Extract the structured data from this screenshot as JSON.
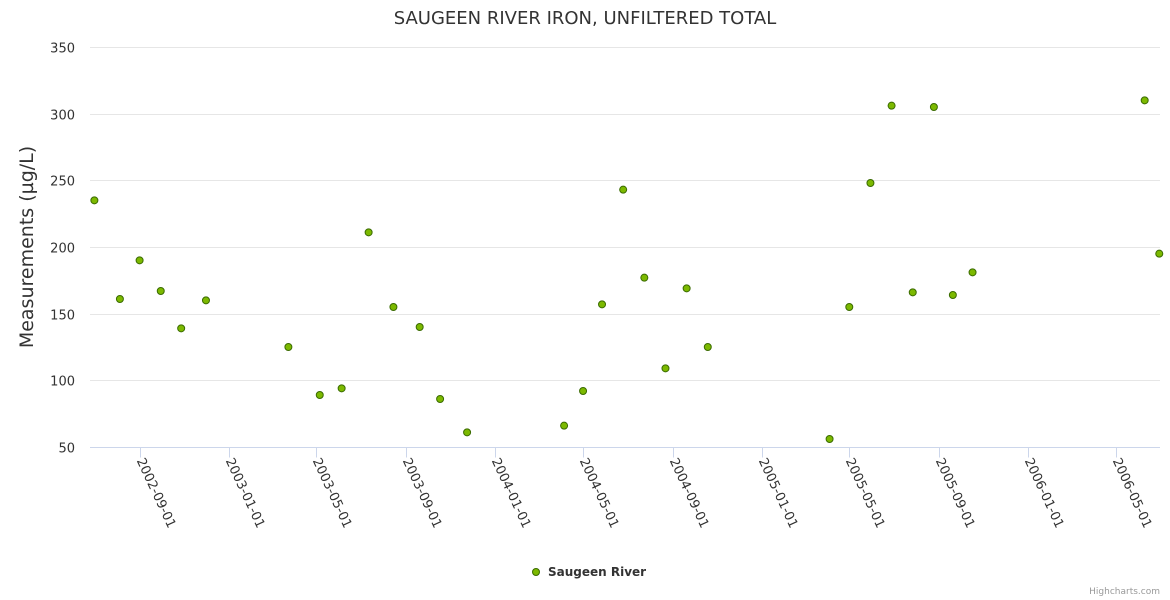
{
  "chart_data": {
    "type": "scatter",
    "title": "SAUGEEN RIVER IRON, UNFILTERED TOTAL",
    "ylabel": "Measurements (µg/L)",
    "xlabel": "",
    "ylim": [
      50,
      350
    ],
    "yticks": [
      50,
      100,
      150,
      200,
      250,
      300,
      350
    ],
    "xlim": [
      "2002-06-25",
      "2006-07-01"
    ],
    "xticks": [
      "2002-09-01",
      "2003-01-01",
      "2003-05-01",
      "2003-09-01",
      "2004-01-01",
      "2004-05-01",
      "2004-09-01",
      "2005-01-01",
      "2005-05-01",
      "2005-09-01",
      "2006-01-01",
      "2006-05-01"
    ],
    "grid": true,
    "legend_position": "bottom-center",
    "colors": {
      "marker_fill": "#7cb900",
      "marker_stroke": "#3a6b00",
      "grid": "#e6e6e6",
      "axis": "#ccd6eb"
    },
    "series": [
      {
        "name": "Saugeen River",
        "points": [
          {
            "x": "2002-07-01",
            "y": 235
          },
          {
            "x": "2002-08-05",
            "y": 161
          },
          {
            "x": "2002-09-01",
            "y": 190
          },
          {
            "x": "2002-09-30",
            "y": 167
          },
          {
            "x": "2002-10-28",
            "y": 139
          },
          {
            "x": "2002-12-01",
            "y": 160
          },
          {
            "x": "2003-03-24",
            "y": 125
          },
          {
            "x": "2003-05-06",
            "y": 89
          },
          {
            "x": "2003-06-05",
            "y": 94
          },
          {
            "x": "2003-07-12",
            "y": 211
          },
          {
            "x": "2003-08-15",
            "y": 155
          },
          {
            "x": "2003-09-20",
            "y": 140
          },
          {
            "x": "2003-10-18",
            "y": 86
          },
          {
            "x": "2003-11-24",
            "y": 61
          },
          {
            "x": "2004-04-05",
            "y": 66
          },
          {
            "x": "2004-05-01",
            "y": 92
          },
          {
            "x": "2004-05-27",
            "y": 157
          },
          {
            "x": "2004-06-25",
            "y": 243
          },
          {
            "x": "2004-07-24",
            "y": 177
          },
          {
            "x": "2004-08-22",
            "y": 109
          },
          {
            "x": "2004-09-20",
            "y": 169
          },
          {
            "x": "2004-10-19",
            "y": 125
          },
          {
            "x": "2005-04-04",
            "y": 56
          },
          {
            "x": "2005-05-01",
            "y": 155
          },
          {
            "x": "2005-05-30",
            "y": 248
          },
          {
            "x": "2005-06-28",
            "y": 306
          },
          {
            "x": "2005-07-27",
            "y": 166
          },
          {
            "x": "2005-08-25",
            "y": 305
          },
          {
            "x": "2005-09-20",
            "y": 164
          },
          {
            "x": "2005-10-17",
            "y": 181
          },
          {
            "x": "2006-06-10",
            "y": 310
          },
          {
            "x": "2006-06-30",
            "y": 195
          }
        ]
      }
    ]
  },
  "credits": "Highcharts.com"
}
